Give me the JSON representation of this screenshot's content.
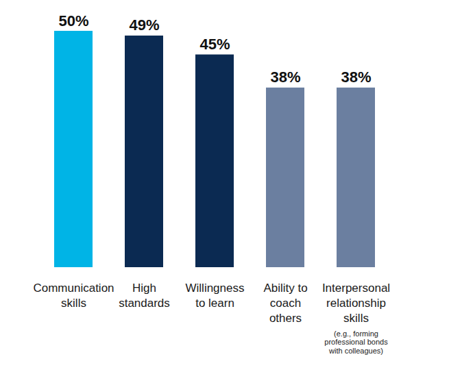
{
  "chart_data": {
    "type": "bar",
    "categories": [
      "Communication\nskills",
      "High\nstandards",
      "Willingness\nto learn",
      "Ability to\ncoach\nothers",
      "Interpersonal\nrelationship\nskills"
    ],
    "values": [
      50,
      49,
      45,
      38,
      38
    ],
    "value_labels": [
      "50%",
      "49%",
      "45%",
      "38%",
      "38%"
    ],
    "colors": [
      "#00b4e6",
      "#0b2a52",
      "#0b2a52",
      "#6b7fa0",
      "#6b7fa0"
    ],
    "ylim": [
      0,
      50
    ],
    "data_labels": true,
    "tick_labels": "x",
    "grid": false,
    "annotations": [
      {
        "text": "(e.g., forming\nprofessional bonds\nwith colleagues)",
        "category": "Interpersonal\nrelationship\nskills"
      }
    ]
  }
}
